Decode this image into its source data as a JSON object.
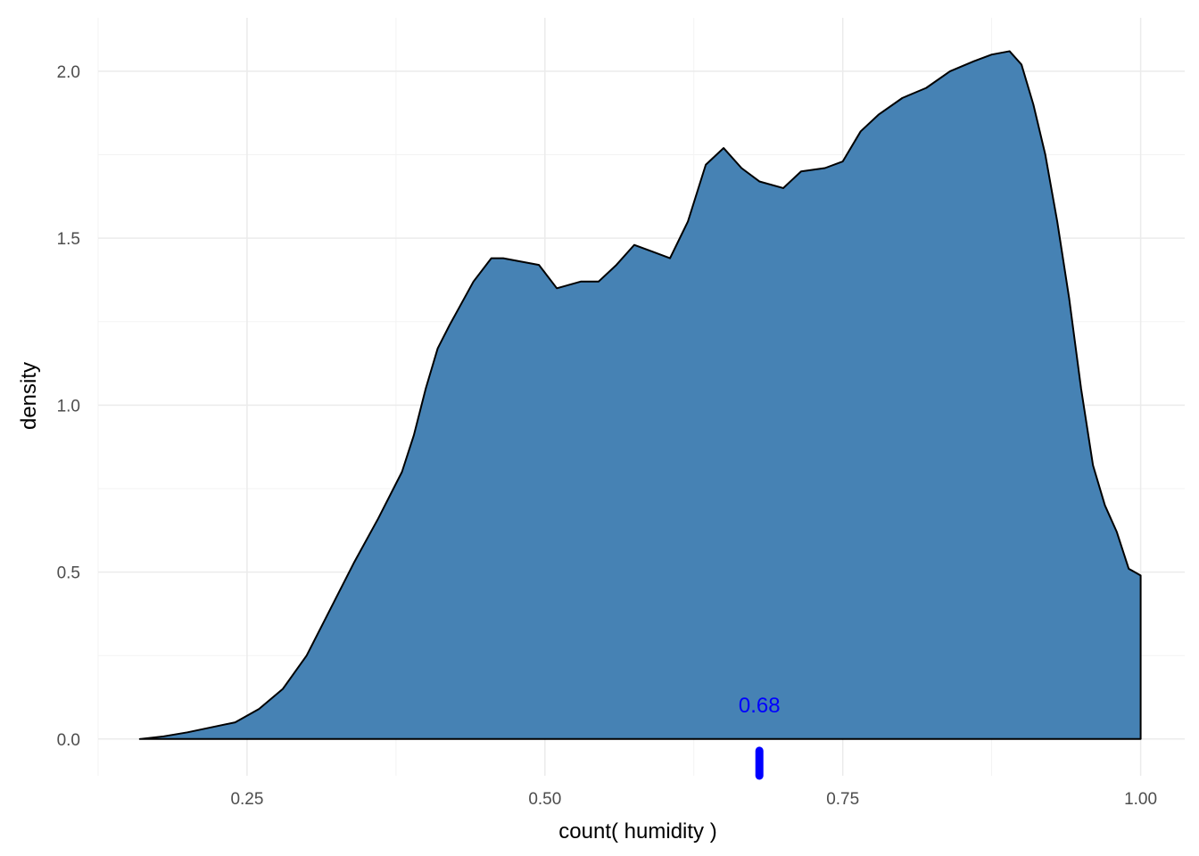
{
  "chart_data": {
    "type": "area",
    "title": "",
    "xlabel": "count( humidity )",
    "ylabel": "density",
    "xlim": [
      0.125,
      1.037
    ],
    "ylim": [
      -0.11,
      2.16
    ],
    "grid": true,
    "x_ticks": [
      0.25,
      0.5,
      0.75,
      1.0
    ],
    "x_tick_labels": [
      "0.25",
      "0.50",
      "0.75",
      "1.00"
    ],
    "x_minor_ticks": [
      0.125,
      0.375,
      0.625,
      0.875
    ],
    "y_ticks": [
      0.0,
      0.5,
      1.0,
      1.5,
      2.0
    ],
    "y_tick_labels": [
      "0.0",
      "0.5",
      "1.0",
      "1.5",
      "2.0"
    ],
    "y_minor_ticks": [
      0.25,
      0.75,
      1.25,
      1.75
    ],
    "fill_color": "#4682b4",
    "line_color": "#000000",
    "series": [
      {
        "x": [
          0.16,
          0.18,
          0.2,
          0.22,
          0.24,
          0.26,
          0.28,
          0.3,
          0.32,
          0.34,
          0.36,
          0.38,
          0.39,
          0.4,
          0.41,
          0.42,
          0.44,
          0.455,
          0.465,
          0.48,
          0.495,
          0.51,
          0.53,
          0.545,
          0.56,
          0.575,
          0.59,
          0.605,
          0.62,
          0.635,
          0.65,
          0.665,
          0.68,
          0.7,
          0.715,
          0.735,
          0.75,
          0.765,
          0.78,
          0.8,
          0.82,
          0.84,
          0.86,
          0.875,
          0.89,
          0.9,
          0.91,
          0.92,
          0.93,
          0.94,
          0.95,
          0.96,
          0.97,
          0.98,
          0.99,
          1.0
        ],
        "y": [
          0.0,
          0.008,
          0.02,
          0.035,
          0.05,
          0.09,
          0.15,
          0.25,
          0.39,
          0.53,
          0.66,
          0.8,
          0.91,
          1.05,
          1.17,
          1.24,
          1.37,
          1.44,
          1.44,
          1.43,
          1.42,
          1.35,
          1.37,
          1.37,
          1.42,
          1.48,
          1.46,
          1.44,
          1.55,
          1.72,
          1.77,
          1.71,
          1.67,
          1.65,
          1.7,
          1.71,
          1.73,
          1.82,
          1.87,
          1.92,
          1.95,
          2.0,
          2.03,
          2.05,
          2.06,
          2.02,
          1.9,
          1.75,
          1.55,
          1.32,
          1.05,
          0.82,
          0.7,
          0.62,
          0.51,
          0.49
        ]
      }
    ],
    "rug_x": 0.68,
    "rug_color": "#0000ff",
    "annotation": {
      "text": "0.68",
      "x": 0.68,
      "y": 0.08,
      "color": "#0000ff"
    }
  }
}
